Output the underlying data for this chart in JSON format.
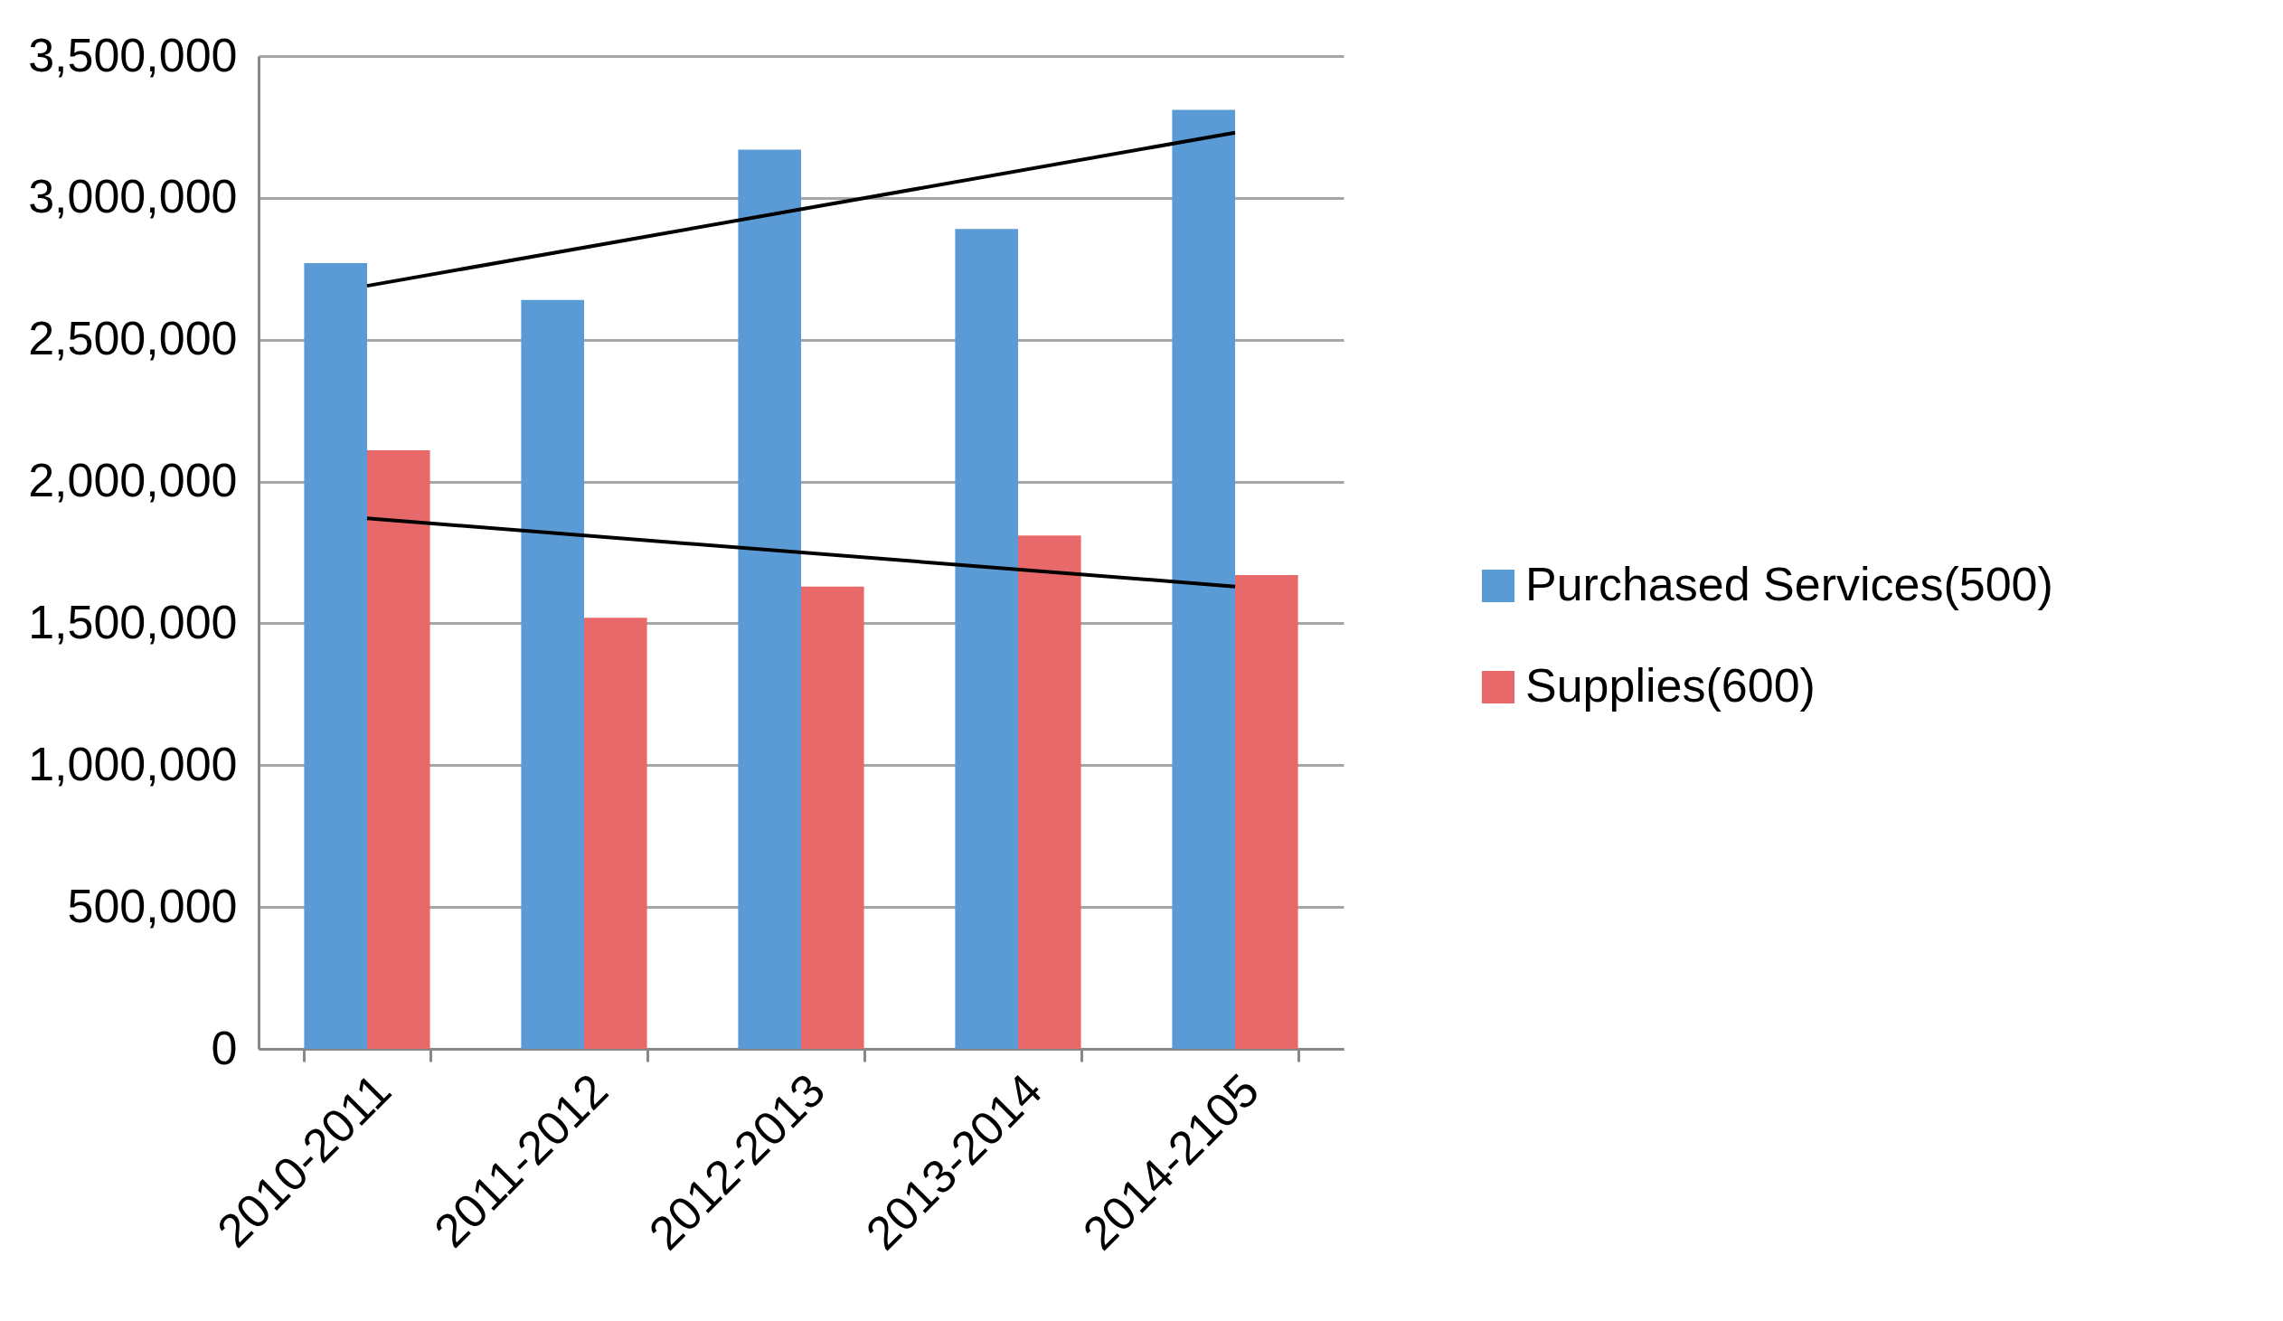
{
  "chart_data": {
    "type": "bar",
    "categories": [
      "2010-2011",
      "2011-2012",
      "2012-2013",
      "2013-2014",
      "2014-2105"
    ],
    "series": [
      {
        "name": "Purchased Services(500)",
        "color": "#5b9bd5",
        "values": [
          2770000,
          2640000,
          3170000,
          2890000,
          3310000
        ]
      },
      {
        "name": "Supplies(600)",
        "color": "#e8696a",
        "values": [
          2110000,
          1520000,
          1630000,
          1810000,
          1670000
        ]
      },
      {
        "type": "line",
        "color": "#000000",
        "x": [
          "2010-2011",
          "2014-2105"
        ],
        "values": [
          2690000,
          3230000
        ]
      },
      {
        "type": "line",
        "color": "#000000",
        "x": [
          "2010-2011",
          "2014-2105"
        ],
        "values": [
          1870000,
          1630000
        ]
      }
    ],
    "ylim": [
      0,
      3500000
    ],
    "yticks": [
      0,
      {
        "value": 500000,
        "label": "500,000"
      },
      {
        "value": 1000000,
        "label": "1,000,000"
      },
      {
        "value": 1500000,
        "label": "1,500,000"
      },
      {
        "value": 2000000,
        "label": "2,000,000"
      },
      {
        "value": 2500000,
        "label": "2,500,000"
      },
      {
        "value": 3000000,
        "label": "3,000,000"
      },
      {
        "value": 3500000,
        "label": "3,500,000"
      }
    ],
    "grid": "y",
    "legend": "right"
  }
}
